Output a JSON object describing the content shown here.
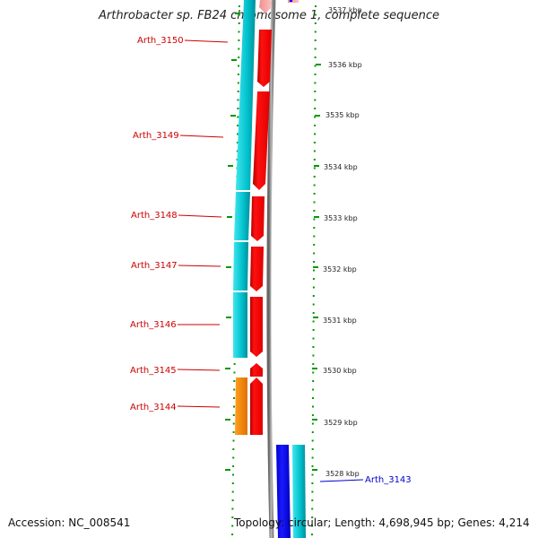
{
  "title": "Arthrobacter sp. FB24 chromosome 1, complete sequence",
  "accession": "Accession: NC_008541",
  "topology": "Topology: circular; Length: 4,698,945 bp; Genes: 4,214",
  "colors": {
    "forward_label": "#cc0000",
    "reverse_label": "#0000cc",
    "gene_red": "#ff0000",
    "gene_cyan": "#00c8d2",
    "gene_orange": "#ff8c00",
    "gene_blue": "#0000ff",
    "backbone": "#888888",
    "ticks": "#009900"
  },
  "icons": [
    "gene-arrow-icon"
  ],
  "scale": {
    "top_kbp": "3537 kbp",
    "ticks": [
      "3536 kbp",
      "3535 kbp",
      "3534 kbp",
      "3533 kbp",
      "3532 kbp",
      "3531 kbp",
      "3530 kbp",
      "3529 kbp",
      "3528 kbp"
    ]
  },
  "genes": [
    {
      "label": "Arth_3150",
      "strand": "forward"
    },
    {
      "label": "Arth_3149",
      "strand": "forward"
    },
    {
      "label": "Arth_3148",
      "strand": "forward"
    },
    {
      "label": "Arth_3147",
      "strand": "forward"
    },
    {
      "label": "Arth_3146",
      "strand": "forward"
    },
    {
      "label": "Arth_3145",
      "strand": "forward"
    },
    {
      "label": "Arth_3144",
      "strand": "forward"
    },
    {
      "label": "Arth_3143",
      "strand": "reverse"
    }
  ]
}
